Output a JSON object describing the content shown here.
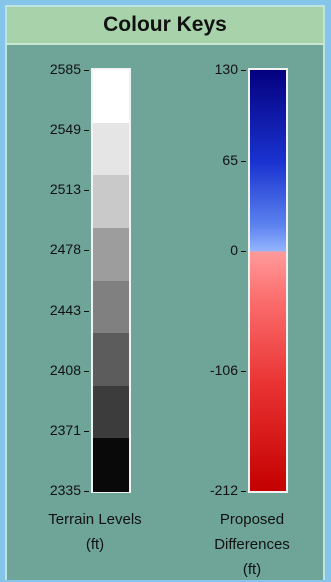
{
  "title": "Colour Keys",
  "terrain": {
    "caption_line1": "Terrain Levels",
    "caption_line2": "(ft)",
    "ticks": [
      "2585",
      "2549",
      "2513",
      "2478",
      "2443",
      "2408",
      "2371",
      "2335"
    ],
    "segment_colors": [
      "#ffffff",
      "#e5e5e5",
      "#c9c9c9",
      "#9d9d9d",
      "#808080",
      "#5c5c5c",
      "#3c3c3c",
      "#090909"
    ]
  },
  "differences": {
    "caption_line1": "Proposed",
    "caption_line2": "Differences",
    "caption_line3": "(ft)",
    "ticks": [
      "130",
      "65",
      "0",
      "-106",
      "-212"
    ],
    "tick_values": [
      130,
      65,
      0,
      -106,
      -212
    ]
  },
  "colors": {
    "panel": "#6fa598",
    "header": "#a8d3aa",
    "window_bg": "#86c5ea"
  }
}
